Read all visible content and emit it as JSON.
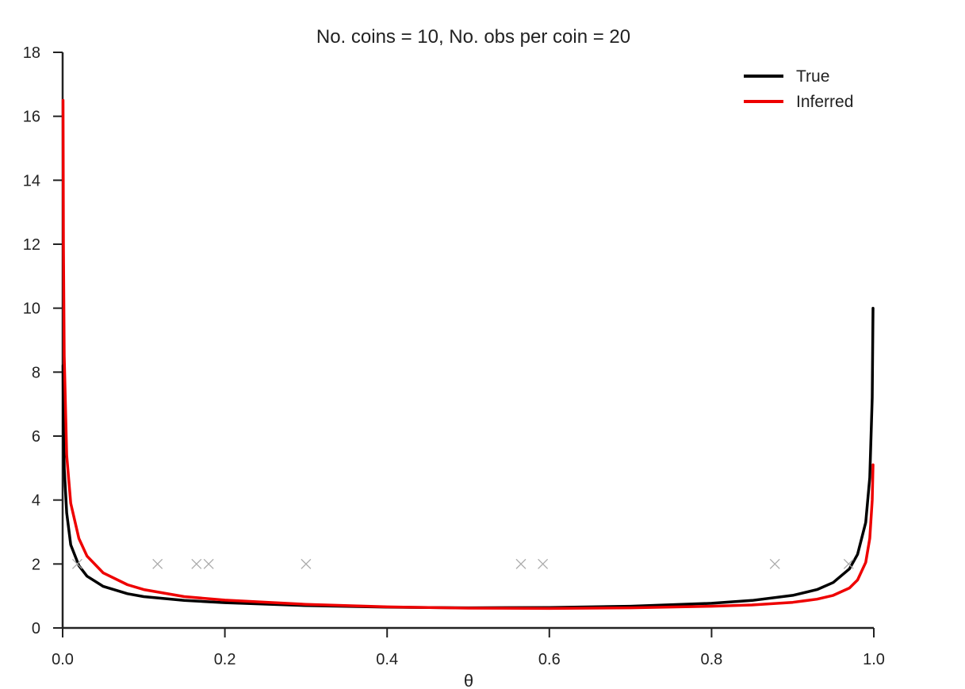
{
  "chart_data": {
    "type": "line",
    "title": "No. coins = 10, No. obs per coin = 20",
    "xlabel": "θ",
    "ylabel": "",
    "xlim": [
      0.0,
      1.0
    ],
    "ylim": [
      0,
      18
    ],
    "xticks": [
      "0.0",
      "0.2",
      "0.4",
      "0.6",
      "0.8",
      "1.0"
    ],
    "yticks": [
      "0",
      "2",
      "4",
      "6",
      "8",
      "10",
      "12",
      "14",
      "16",
      "18"
    ],
    "grid": false,
    "legend_position": "top-right",
    "series": [
      {
        "name": "True",
        "color": "#000000",
        "x": [
          0.0005,
          0.001,
          0.002,
          0.005,
          0.01,
          0.02,
          0.03,
          0.05,
          0.08,
          0.1,
          0.15,
          0.2,
          0.3,
          0.4,
          0.5,
          0.6,
          0.7,
          0.8,
          0.85,
          0.9,
          0.93,
          0.95,
          0.97,
          0.98,
          0.99,
          0.995,
          0.998,
          0.999
        ],
        "y": [
          8.2,
          6.4,
          5.0,
          3.6,
          2.6,
          1.95,
          1.62,
          1.3,
          1.07,
          0.98,
          0.86,
          0.79,
          0.7,
          0.65,
          0.63,
          0.64,
          0.68,
          0.77,
          0.86,
          1.02,
          1.2,
          1.42,
          1.85,
          2.3,
          3.3,
          4.7,
          7.2,
          10.0
        ]
      },
      {
        "name": "Inferred",
        "color": "#ee0000",
        "x": [
          0.0005,
          0.001,
          0.002,
          0.005,
          0.01,
          0.02,
          0.03,
          0.05,
          0.08,
          0.1,
          0.15,
          0.2,
          0.3,
          0.4,
          0.5,
          0.6,
          0.7,
          0.8,
          0.85,
          0.9,
          0.93,
          0.95,
          0.97,
          0.98,
          0.99,
          0.995,
          0.998,
          0.999
        ],
        "y": [
          16.5,
          12.0,
          8.5,
          5.4,
          3.9,
          2.8,
          2.25,
          1.72,
          1.35,
          1.2,
          0.98,
          0.87,
          0.74,
          0.66,
          0.62,
          0.61,
          0.63,
          0.68,
          0.72,
          0.8,
          0.9,
          1.02,
          1.25,
          1.5,
          2.05,
          2.8,
          4.0,
          5.1
        ]
      }
    ],
    "observations": {
      "marker": "x",
      "color": "#aaaaaa",
      "y": 2,
      "x": [
        0.018,
        0.117,
        0.165,
        0.18,
        0.3,
        0.565,
        0.592,
        0.878,
        0.969
      ]
    }
  }
}
